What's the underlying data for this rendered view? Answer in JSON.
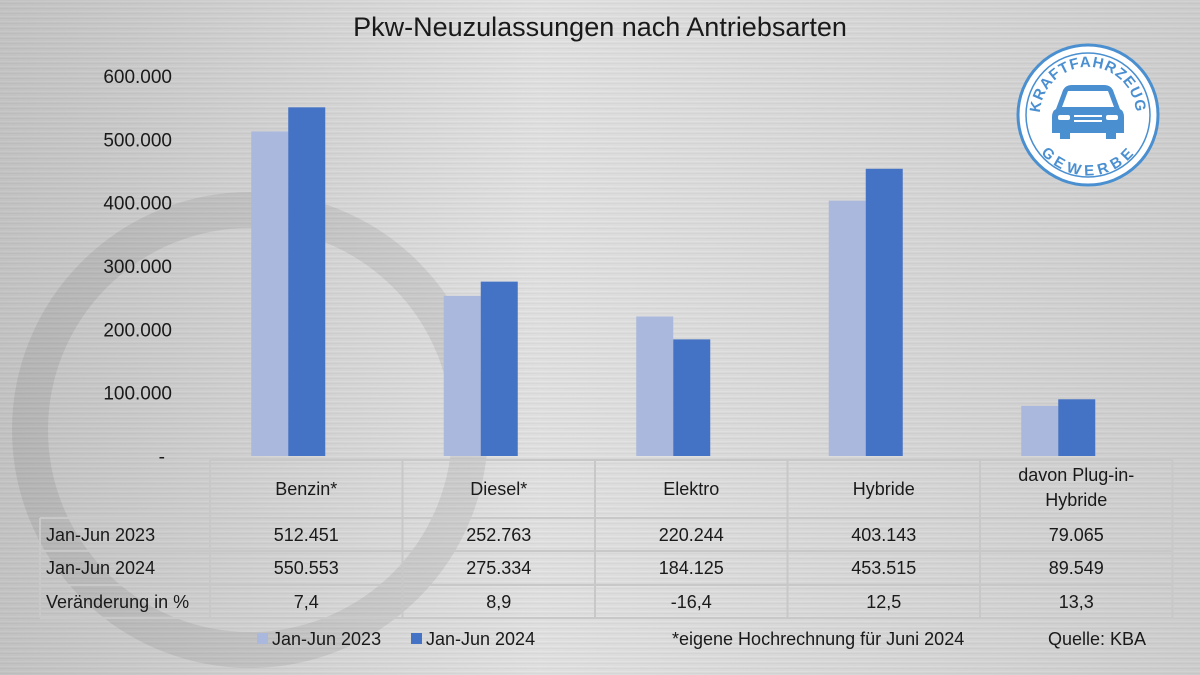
{
  "chart_data": {
    "type": "bar",
    "title": "Pkw-Neuzulassungen nach Antriebsarten",
    "categories": [
      "Benzin*",
      "Diesel*",
      "Elektro",
      "Hybride",
      "davon Plug-in-Hybride"
    ],
    "series": [
      {
        "name": "Jan-Jun 2023",
        "color": "#a9b8dc",
        "values": [
          512451,
          252763,
          220244,
          403143,
          79065
        ]
      },
      {
        "name": "Jan-Jun 2024",
        "color": "#4472c4",
        "values": [
          550553,
          275334,
          184125,
          453515,
          89549
        ]
      }
    ],
    "ylim": [
      0,
      600000
    ],
    "yticks": [
      "-",
      "100.000",
      "200.000",
      "300.000",
      "400.000",
      "500.000",
      "600.000"
    ],
    "grid": false,
    "legend": "bottom",
    "data_table": {
      "row_labels": [
        "Jan-Jun 2023",
        "Jan-Jun 2024",
        "Veränderung in %"
      ],
      "categories_display": [
        [
          "Benzin*"
        ],
        [
          "Diesel*"
        ],
        [
          "Elektro"
        ],
        [
          "Hybride"
        ],
        [
          "davon Plug-in-",
          "Hybride"
        ]
      ],
      "rows": [
        [
          "512.451",
          "252.763",
          "220.244",
          "403.143",
          "79.065"
        ],
        [
          "550.553",
          "275.334",
          "184.125",
          "453.515",
          "89.549"
        ],
        [
          "7,4",
          "8,9",
          "-16,4",
          "12,5",
          "13,3"
        ]
      ]
    },
    "annotations": [
      "*eigene Hochrechnung für Juni 2024",
      "Quelle: KBA"
    ]
  },
  "logo": {
    "top_text": "KRAFTFAHRZEUG",
    "bottom_text": "GEWERBE",
    "color": "#4a8fd0"
  }
}
